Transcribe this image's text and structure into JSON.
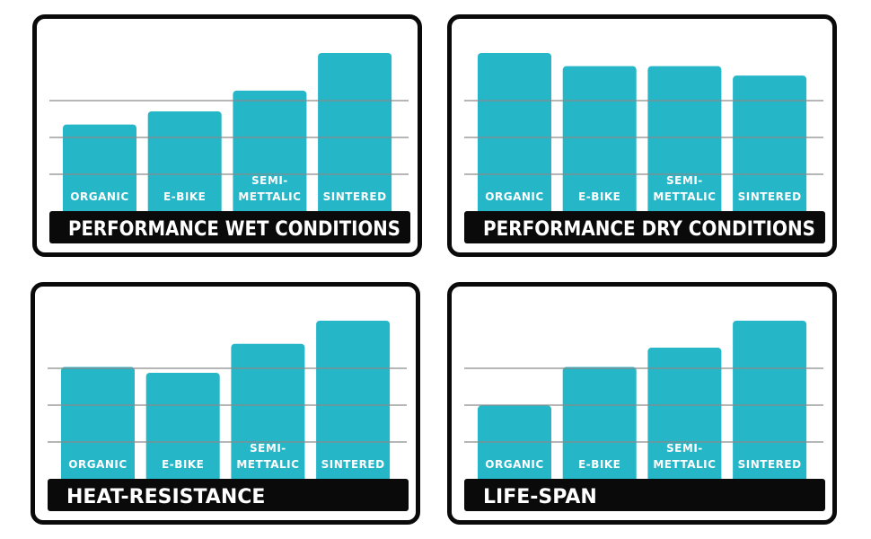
{
  "colors": {
    "bar": "#25b6c8",
    "frame": "#0a0a0a",
    "grid": "#8a8a8a",
    "label": "#ffffff"
  },
  "chart_data": [
    {
      "type": "bar",
      "title": "PERFORMANCE WET CONDITIONS",
      "categories": [
        [
          "ORGANIC"
        ],
        [
          "E-BIKE"
        ],
        [
          "SEMI-",
          "METTALIC"
        ],
        [
          "SINTERED"
        ]
      ],
      "values": [
        2.3,
        2.65,
        3.2,
        4.2
      ],
      "ylim": [
        0,
        4.2
      ],
      "grid": true
    },
    {
      "type": "bar",
      "title": "PERFORMANCE DRY CONDITIONS",
      "categories": [
        [
          "ORGANIC"
        ],
        [
          "E-BIKE"
        ],
        [
          "SEMI-",
          "METTALIC"
        ],
        [
          "SINTERED"
        ]
      ],
      "values": [
        4.2,
        3.85,
        3.85,
        3.6
      ],
      "ylim": [
        0,
        4.2
      ],
      "grid": true
    },
    {
      "type": "bar",
      "title": "HEAT-RESISTANCE",
      "categories": [
        [
          "ORGANIC"
        ],
        [
          "E-BIKE"
        ],
        [
          "SEMI-",
          "METTALIC"
        ],
        [
          "SINTERED"
        ]
      ],
      "values": [
        2.9,
        2.75,
        3.5,
        4.1
      ],
      "ylim": [
        0,
        4.1
      ],
      "grid": true
    },
    {
      "type": "bar",
      "title": "LIFE-SPAN",
      "categories": [
        [
          "ORGANIC"
        ],
        [
          "E-BIKE"
        ],
        [
          "SEMI-",
          "METTALIC"
        ],
        [
          "SINTERED"
        ]
      ],
      "values": [
        1.9,
        2.9,
        3.4,
        4.1
      ],
      "ylim": [
        0,
        4.1
      ],
      "grid": true
    }
  ]
}
